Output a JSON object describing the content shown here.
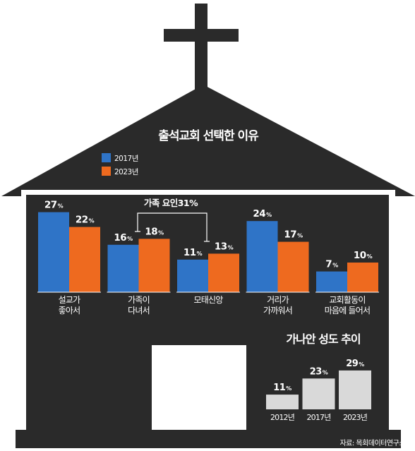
{
  "chart_data": [
    {
      "type": "bar",
      "title": "출석교회 선택한 이유",
      "categories": [
        [
          "설교가",
          "좋아서"
        ],
        [
          "가족이",
          "다녀서"
        ],
        [
          "모태신앙"
        ],
        [
          "거리가",
          "가까워서"
        ],
        [
          "교회활동이",
          "마음에 들어서"
        ]
      ],
      "series": [
        {
          "name": "2017년",
          "color": "#2f74c7",
          "values": [
            27,
            16,
            11,
            24,
            7
          ]
        },
        {
          "name": "2023년",
          "color": "#ee6a1f",
          "values": [
            22,
            18,
            13,
            17,
            10
          ]
        }
      ],
      "value_suffix": "%",
      "annotation": "가족 요인31%",
      "legend_position": "top-left"
    },
    {
      "type": "bar",
      "title": "가나안 성도 추이",
      "categories": [
        "2012년",
        "2017년",
        "2023년"
      ],
      "values": [
        11,
        23,
        29
      ],
      "value_suffix": "%",
      "color": "#d9d9d9"
    }
  ],
  "source": "자료: 목회데이터연구소",
  "colors": {
    "house": "#2a2a2a",
    "background": "#ffffff"
  }
}
